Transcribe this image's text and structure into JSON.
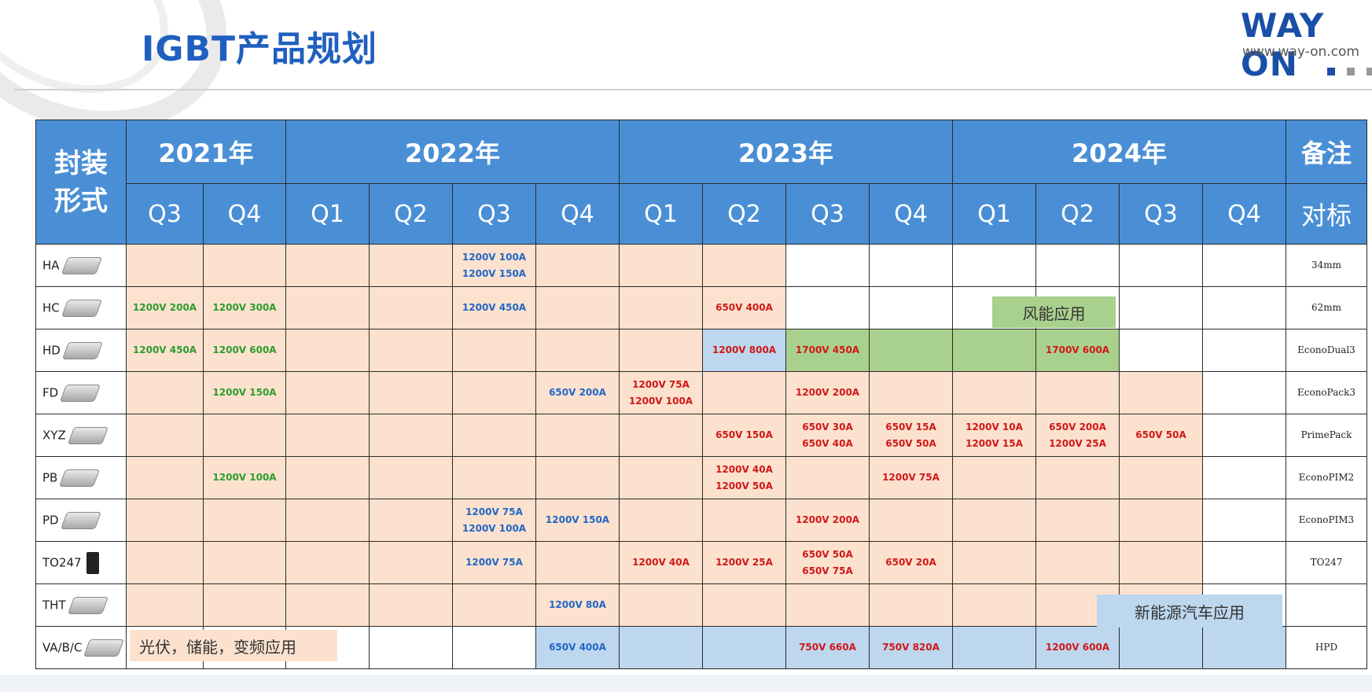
{
  "title": "IGBT产品规划",
  "logo": {
    "text": "WAY ON",
    "url": "www.way-on.com"
  },
  "header": {
    "package_label": "封装\n形式",
    "years": [
      "2021年",
      "2022年",
      "2023年",
      "2024年"
    ],
    "note_label": "备注",
    "note_sub": "对标",
    "quarters": [
      "Q3",
      "Q4",
      "Q1",
      "Q2",
      "Q3",
      "Q4",
      "Q1",
      "Q2",
      "Q3",
      "Q4",
      "Q1",
      "Q2",
      "Q3",
      "Q4"
    ]
  },
  "rows": [
    {
      "package": "HA",
      "cells": [
        "",
        "",
        "",
        "",
        "1200V 100A\n1200V 150A",
        "",
        "",
        "",
        "",
        "",
        "",
        "",
        "",
        ""
      ],
      "ref": "34mm"
    },
    {
      "package": "HC",
      "cells": [
        "1200V 200A",
        "1200V 300A",
        "",
        "",
        "1200V 450A",
        "",
        "",
        "650V 400A",
        "",
        "",
        "",
        "",
        "",
        ""
      ],
      "ref": "62mm"
    },
    {
      "package": "HD",
      "cells": [
        "1200V 450A",
        "1200V 600A",
        "",
        "",
        "",
        "",
        "",
        "1200V 800A",
        "1700V 450A",
        "",
        "",
        "1700V 600A",
        "",
        ""
      ],
      "ref": "EconoDual3"
    },
    {
      "package": "FD",
      "cells": [
        "",
        "1200V 150A",
        "",
        "",
        "",
        "650V 200A",
        "1200V 75A\n1200V 100A",
        "",
        "1200V 200A",
        "",
        "",
        "",
        "",
        ""
      ],
      "ref": "EconoPack3"
    },
    {
      "package": "XYZ",
      "cells": [
        "",
        "",
        "",
        "",
        "",
        "",
        "",
        "650V 150A",
        "650V 30A\n650V 40A",
        "650V 15A\n650V 50A",
        "1200V 10A\n1200V 15A",
        "650V 200A\n1200V 25A",
        "650V 50A",
        ""
      ],
      "ref": "PrimePack"
    },
    {
      "package": "PB",
      "cells": [
        "",
        "1200V 100A",
        "",
        "",
        "",
        "",
        "",
        "1200V 40A\n1200V 50A",
        "",
        "1200V 75A",
        "",
        "",
        "",
        ""
      ],
      "ref": "EconoPIM2"
    },
    {
      "package": "PD",
      "cells": [
        "",
        "",
        "",
        "",
        "1200V 75A\n1200V 100A",
        "1200V 150A",
        "",
        "",
        "1200V 200A",
        "",
        "",
        "",
        "",
        ""
      ],
      "ref": "EconoPIM3"
    },
    {
      "package": "TO247",
      "cells": [
        "",
        "",
        "",
        "",
        "1200V 75A",
        "",
        "1200V 40A",
        "1200V 25A",
        "650V 50A\n650V 75A",
        "650V 20A",
        "",
        "",
        "",
        ""
      ],
      "ref": "TO247"
    },
    {
      "package": "THT",
      "cells": [
        "",
        "",
        "",
        "",
        "",
        "1200V 80A",
        "",
        "",
        "",
        "",
        "",
        "",
        "",
        ""
      ],
      "ref": ""
    },
    {
      "package": "VA/B/C",
      "cells": [
        "",
        "",
        "",
        "",
        "",
        "650V 400A",
        "",
        "",
        "750V 660A",
        "750V 820A",
        "",
        "1200V 600A",
        "",
        ""
      ],
      "ref": "HPD"
    }
  ],
  "overlays": {
    "wind": "风能应用",
    "ev": "新能源汽车应用",
    "pv": "光伏，储能，变频应用"
  },
  "colors": {
    "header": "#4a8fd6",
    "beige": "#fce2ce",
    "blue": "#bdd7ee",
    "green": "#a9d18e",
    "green_text": "#2e9b2e",
    "blue_text": "#2266c8",
    "red_text": "#d01818"
  }
}
